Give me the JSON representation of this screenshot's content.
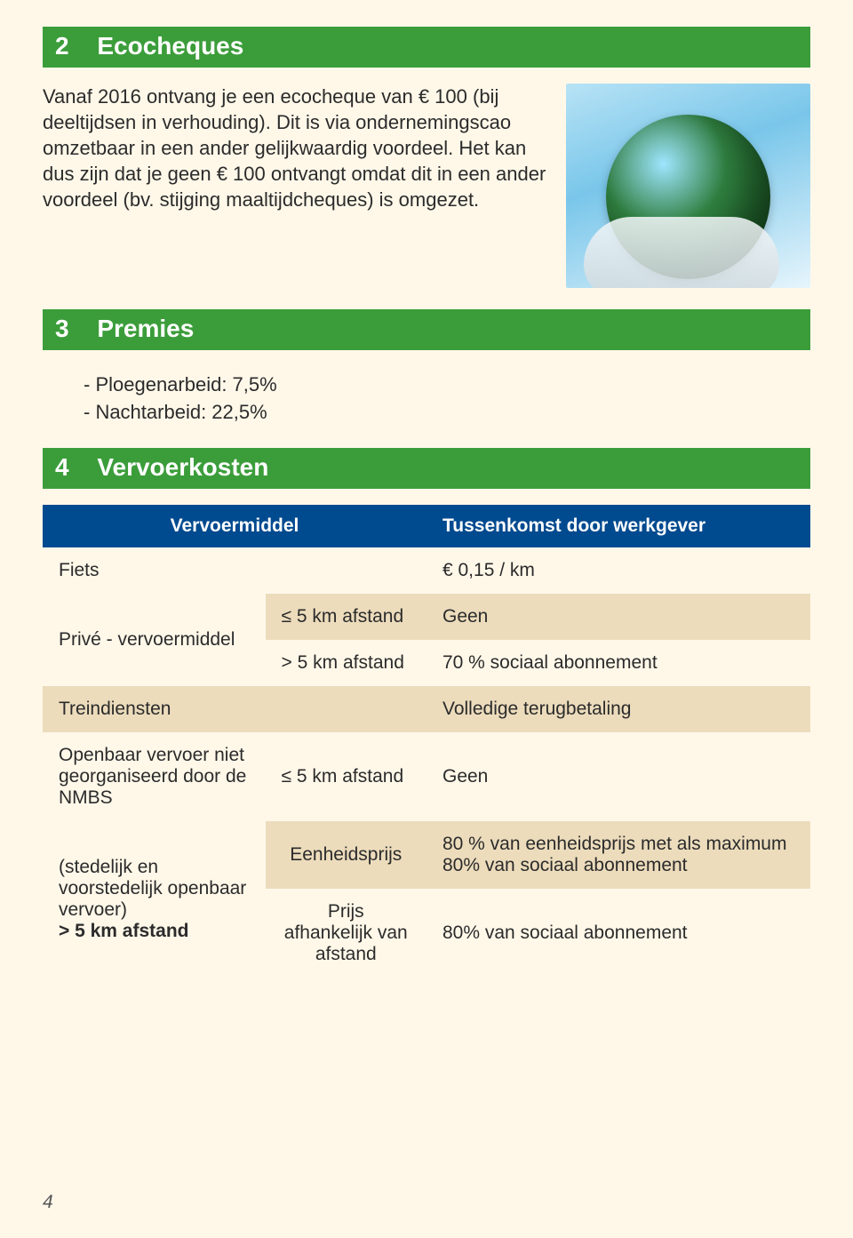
{
  "sections": {
    "s2": {
      "num": "2",
      "title": "Ecocheques"
    },
    "s3": {
      "num": "3",
      "title": "Premies"
    },
    "s4": {
      "num": "4",
      "title": "Vervoerkosten"
    }
  },
  "ecocheques_text": "Vanaf 2016 ontvang je een ecocheque van € 100 (bij deeltijdsen in verhouding). Dit is via ondernemingscao omzetbaar in een ander gelijkwaardig voordeel. Het kan dus zijn dat je geen € 100 ontvangt omdat dit in een ander voordeel (bv. stijging maaltijdcheques) is omgezet.",
  "premies": {
    "item1": "- Ploegenarbeid: 7,5%",
    "item2": "- Nachtarbeid: 22,5%"
  },
  "table": {
    "head": {
      "col_a": "Vervoermiddel",
      "col_b": "Tussenkomst door werkgever"
    },
    "fiets": {
      "label": "Fiets",
      "value": "€ 0,15 / km"
    },
    "prive": {
      "label": "Privé - vervoermiddel",
      "row1": {
        "cond": "≤ 5 km afstand",
        "val": "Geen"
      },
      "row2": {
        "cond": "> 5 km afstand",
        "val": "70 % sociaal abonnement"
      }
    },
    "trein": {
      "label": "Treindiensten",
      "value": "Volledige terugbetaling"
    },
    "openbaar": {
      "label": "Openbaar vervoer niet georganiseerd door de NMBS",
      "cond": "≤ 5 km afstand",
      "val": "Geen"
    },
    "stedelijk": {
      "label": "(stedelijk en voorstedelijk openbaar vervoer)",
      "sublabel": "> 5 km afstand",
      "row1": {
        "cond": "Eenheidsprijs",
        "val": "80 % van eenheidsprijs met als maximum 80% van sociaal abonnement"
      },
      "row2": {
        "cond": "Prijs afhankelijk van afstand",
        "val": "80% van sociaal abonnement"
      }
    }
  },
  "page_number": "4",
  "colors": {
    "page_bg": "#fff8e9",
    "header_green": "#3b9d3a",
    "table_header_blue": "#004a8f",
    "row_tan": "#ecdcbc",
    "row_cream": "#fff8e9"
  }
}
